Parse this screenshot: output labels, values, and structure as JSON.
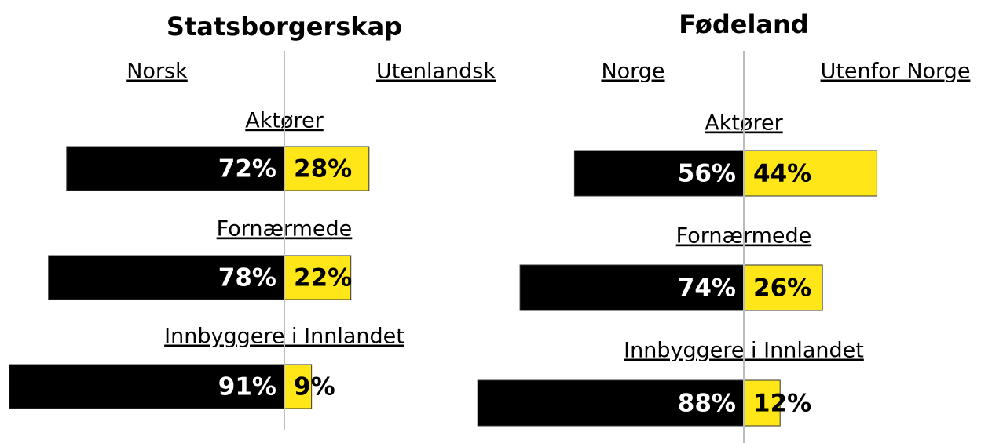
{
  "chart_data": [
    {
      "type": "diverging-bar",
      "title": "Statsborgerskap",
      "categories": [
        "Aktører",
        "Fornærmede",
        "Innbyggere i Innlandet"
      ],
      "series": [
        {
          "name": "Norsk",
          "color": "#000000",
          "values": [
            72,
            78,
            91
          ],
          "value_labels": [
            "72%",
            "78%",
            "91%"
          ]
        },
        {
          "name": "Utenlandsk",
          "color": "#ffe619",
          "values": [
            28,
            22,
            9
          ],
          "value_labels": [
            "28%",
            "22%",
            "9%"
          ]
        }
      ]
    },
    {
      "type": "diverging-bar",
      "title": "Fødeland",
      "categories": [
        "Aktører",
        "Fornærmede",
        "Innbyggere i Innlandet"
      ],
      "series": [
        {
          "name": "Norge",
          "color": "#000000",
          "values": [
            56,
            74,
            88
          ],
          "value_labels": [
            "56%",
            "74%",
            "88%"
          ]
        },
        {
          "name": "Utenfor Norge",
          "color": "#ffe619",
          "values": [
            44,
            26,
            12
          ],
          "value_labels": [
            "44%",
            "26%",
            "12%"
          ]
        }
      ]
    }
  ]
}
